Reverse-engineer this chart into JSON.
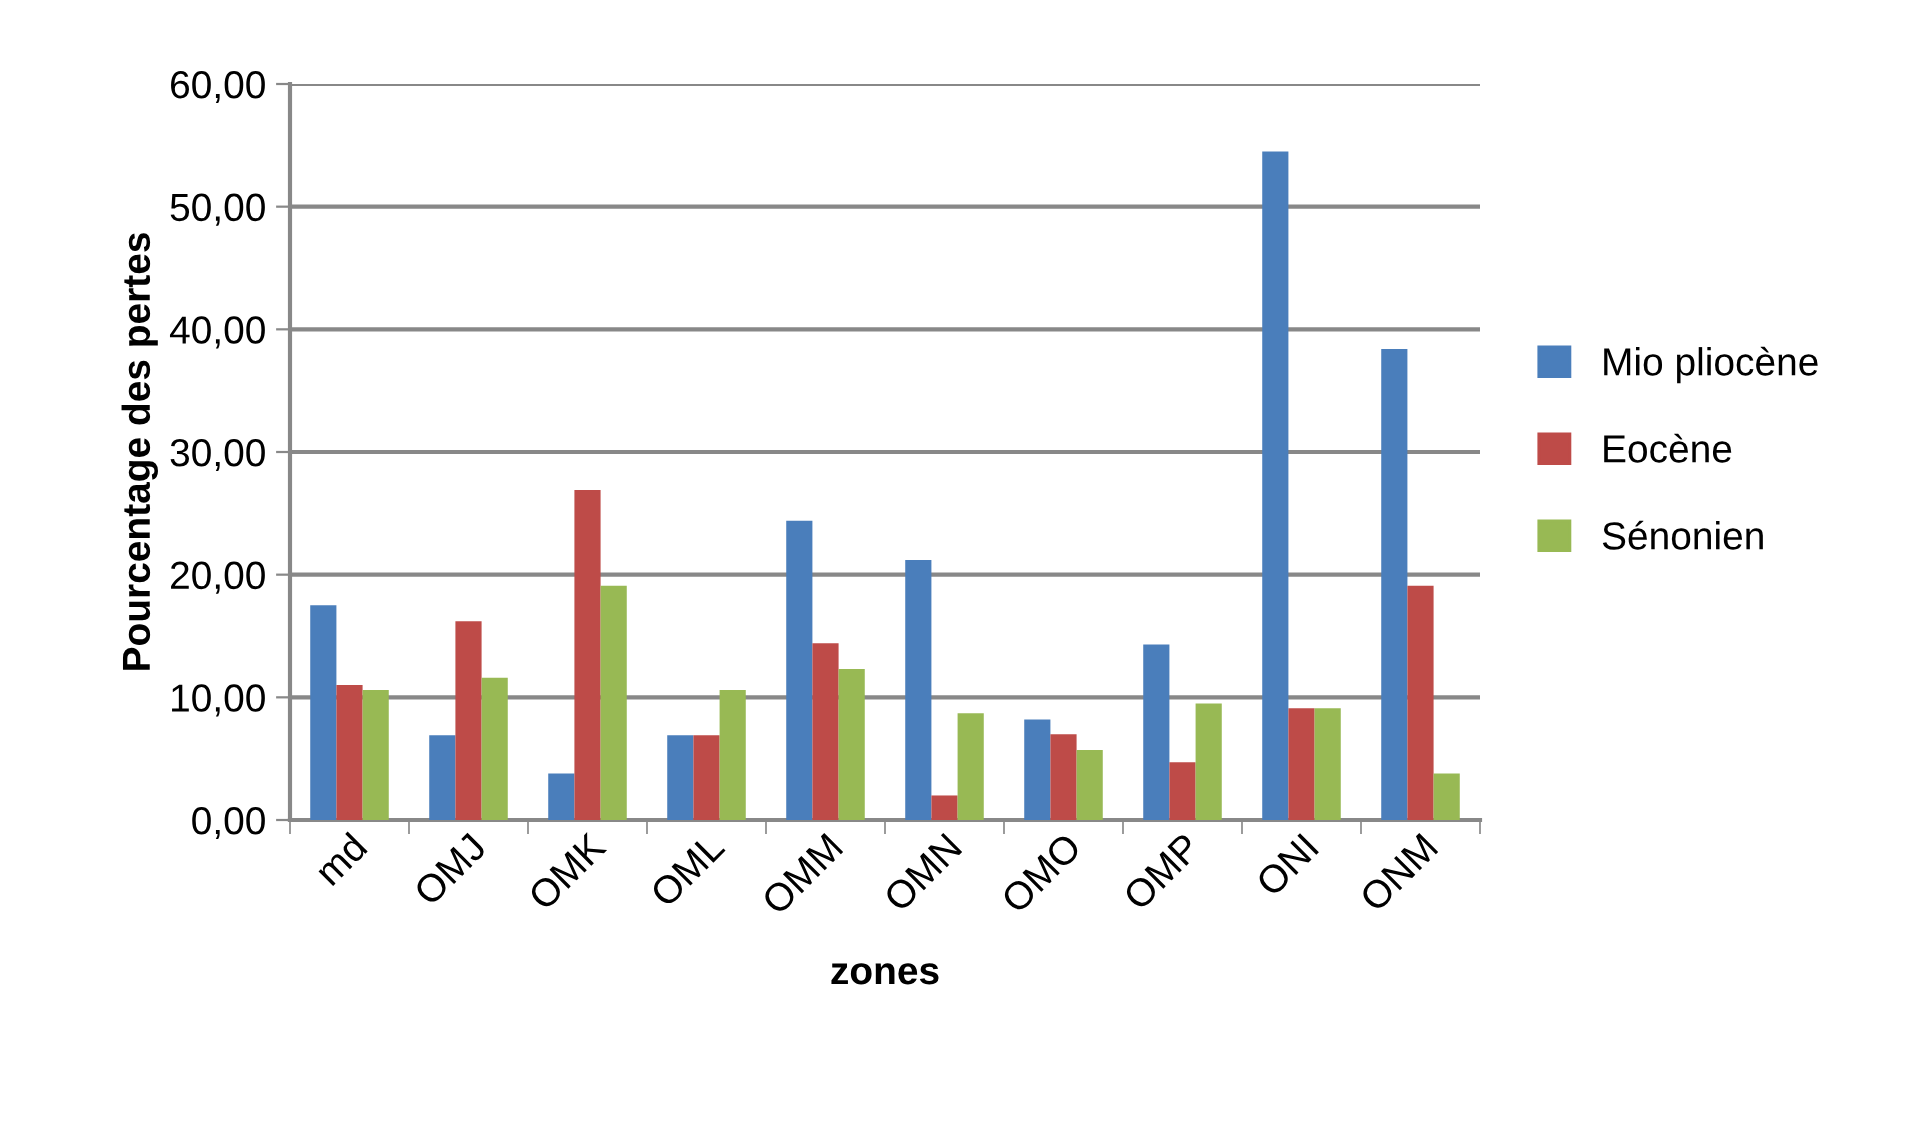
{
  "chart_data": {
    "type": "bar",
    "xlabel": "zones",
    "ylabel": "Pourcentage des pertes",
    "categories": [
      "md",
      "OMJ",
      "OMK",
      "OML",
      "OMM",
      "OMN",
      "OMO",
      "OMP",
      "ONI",
      "ONM"
    ],
    "series": [
      {
        "name": "Mio pliocène",
        "color": "#4a7ebb",
        "values": [
          17.5,
          6.9,
          3.8,
          6.9,
          24.4,
          21.2,
          8.2,
          14.3,
          54.5,
          38.4
        ]
      },
      {
        "name": "Eocène",
        "color": "#be4b48",
        "values": [
          11.0,
          16.2,
          26.9,
          6.9,
          14.4,
          2.0,
          7.0,
          4.7,
          9.1,
          19.1
        ]
      },
      {
        "name": "Sénonien",
        "color": "#98b954",
        "values": [
          10.6,
          11.6,
          19.1,
          10.6,
          12.3,
          8.7,
          5.7,
          9.5,
          9.1,
          3.8
        ]
      }
    ],
    "ylim": [
      0,
      60
    ],
    "yticks": [
      {
        "value": 0,
        "label": "0,00"
      },
      {
        "value": 10,
        "label": "10,00"
      },
      {
        "value": 20,
        "label": "20,00"
      },
      {
        "value": 30,
        "label": "30,00"
      },
      {
        "value": 40,
        "label": "40,00"
      },
      {
        "value": 50,
        "label": "50,00"
      },
      {
        "value": 60,
        "label": "60,00"
      }
    ],
    "grid": "y",
    "legend": "right"
  }
}
